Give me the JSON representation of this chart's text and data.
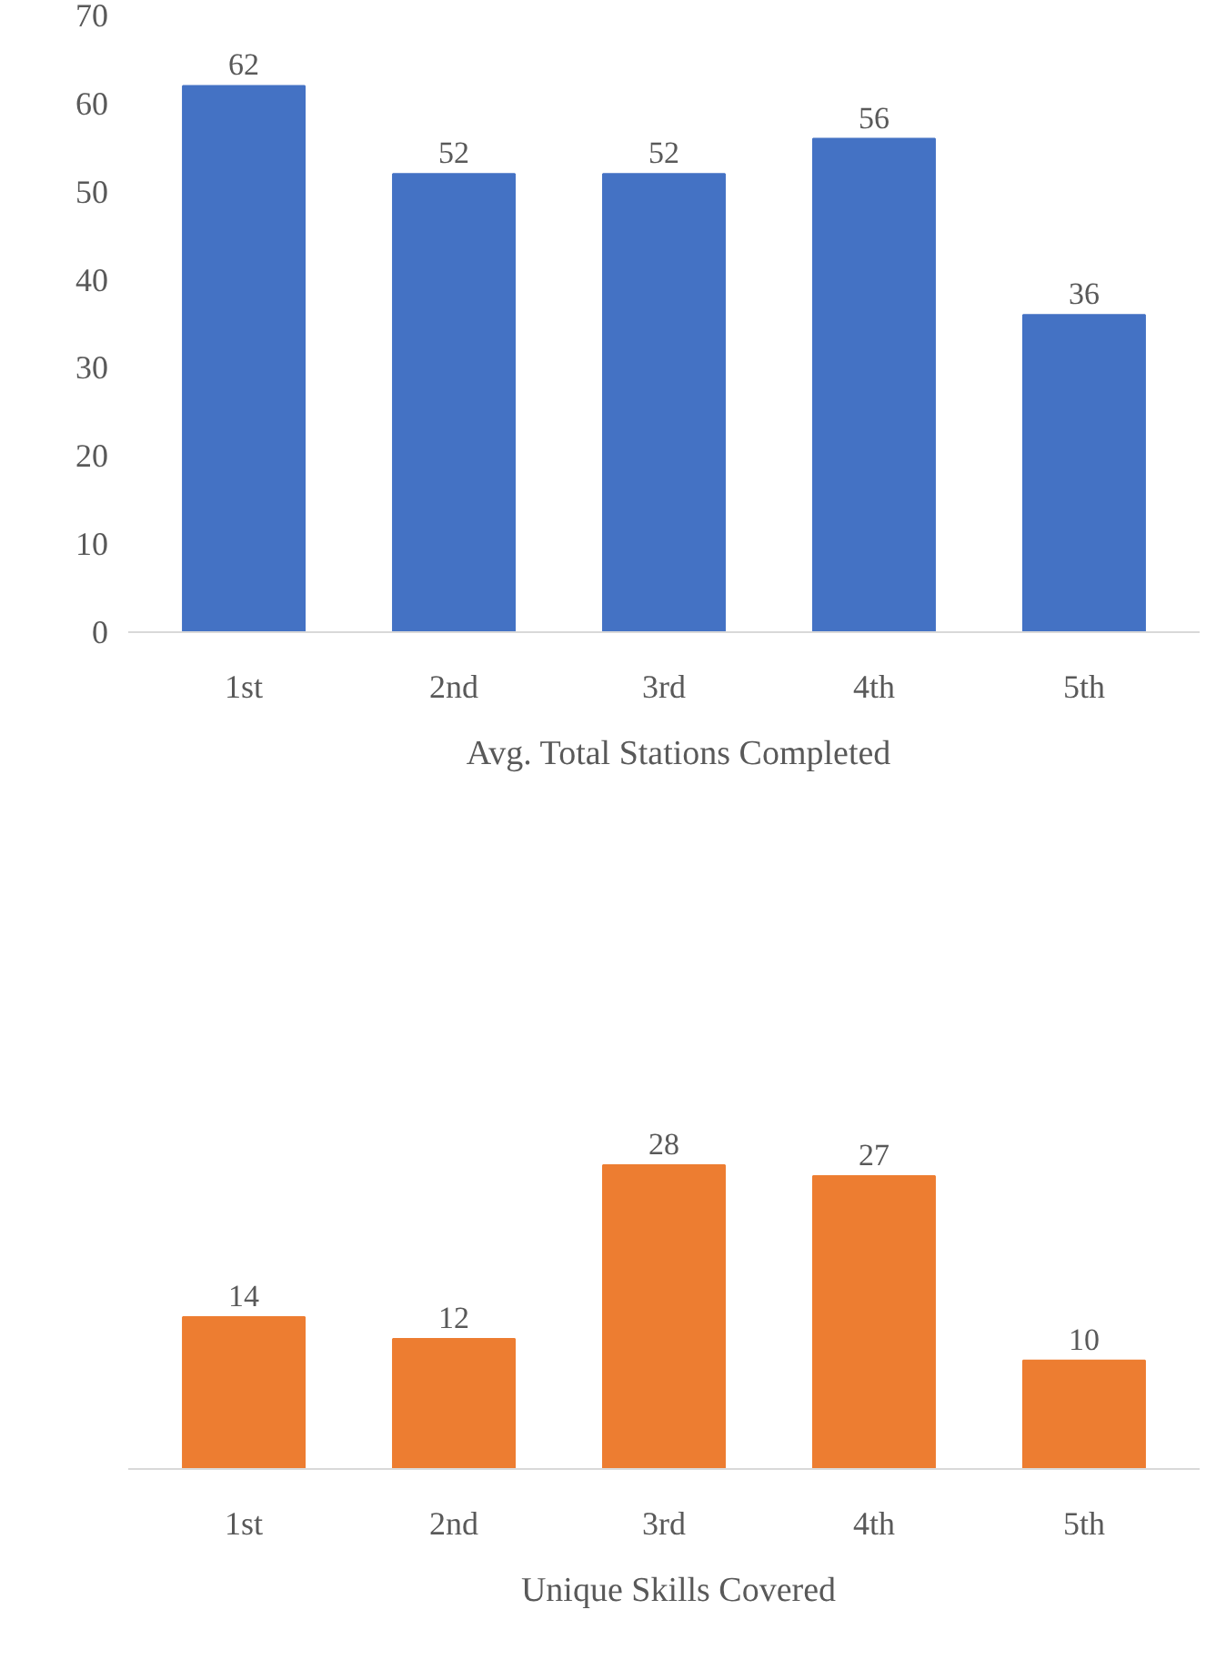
{
  "chart_data": [
    {
      "type": "bar",
      "categories": [
        "1st",
        "2nd",
        "3rd",
        "4th",
        "5th"
      ],
      "series": [
        {
          "name": "Avg. Total Stations Completed",
          "color": "#4472c4",
          "values": [
            62,
            52,
            52,
            56,
            36
          ]
        }
      ],
      "ylim": [
        0,
        70
      ],
      "yticks": [
        0,
        10,
        20,
        30,
        40,
        50,
        60,
        70
      ],
      "data_labels": true,
      "legend": "bottom",
      "grid": false
    },
    {
      "type": "bar",
      "categories": [
        "1st",
        "2nd",
        "3rd",
        "4th",
        "5th"
      ],
      "series": [
        {
          "name": "Unique Skills Covered",
          "color": "#ed7d31",
          "values": [
            14,
            12,
            28,
            27,
            10
          ]
        }
      ],
      "data_labels": true,
      "legend": "bottom",
      "grid": false,
      "tick_labels": "x"
    }
  ]
}
